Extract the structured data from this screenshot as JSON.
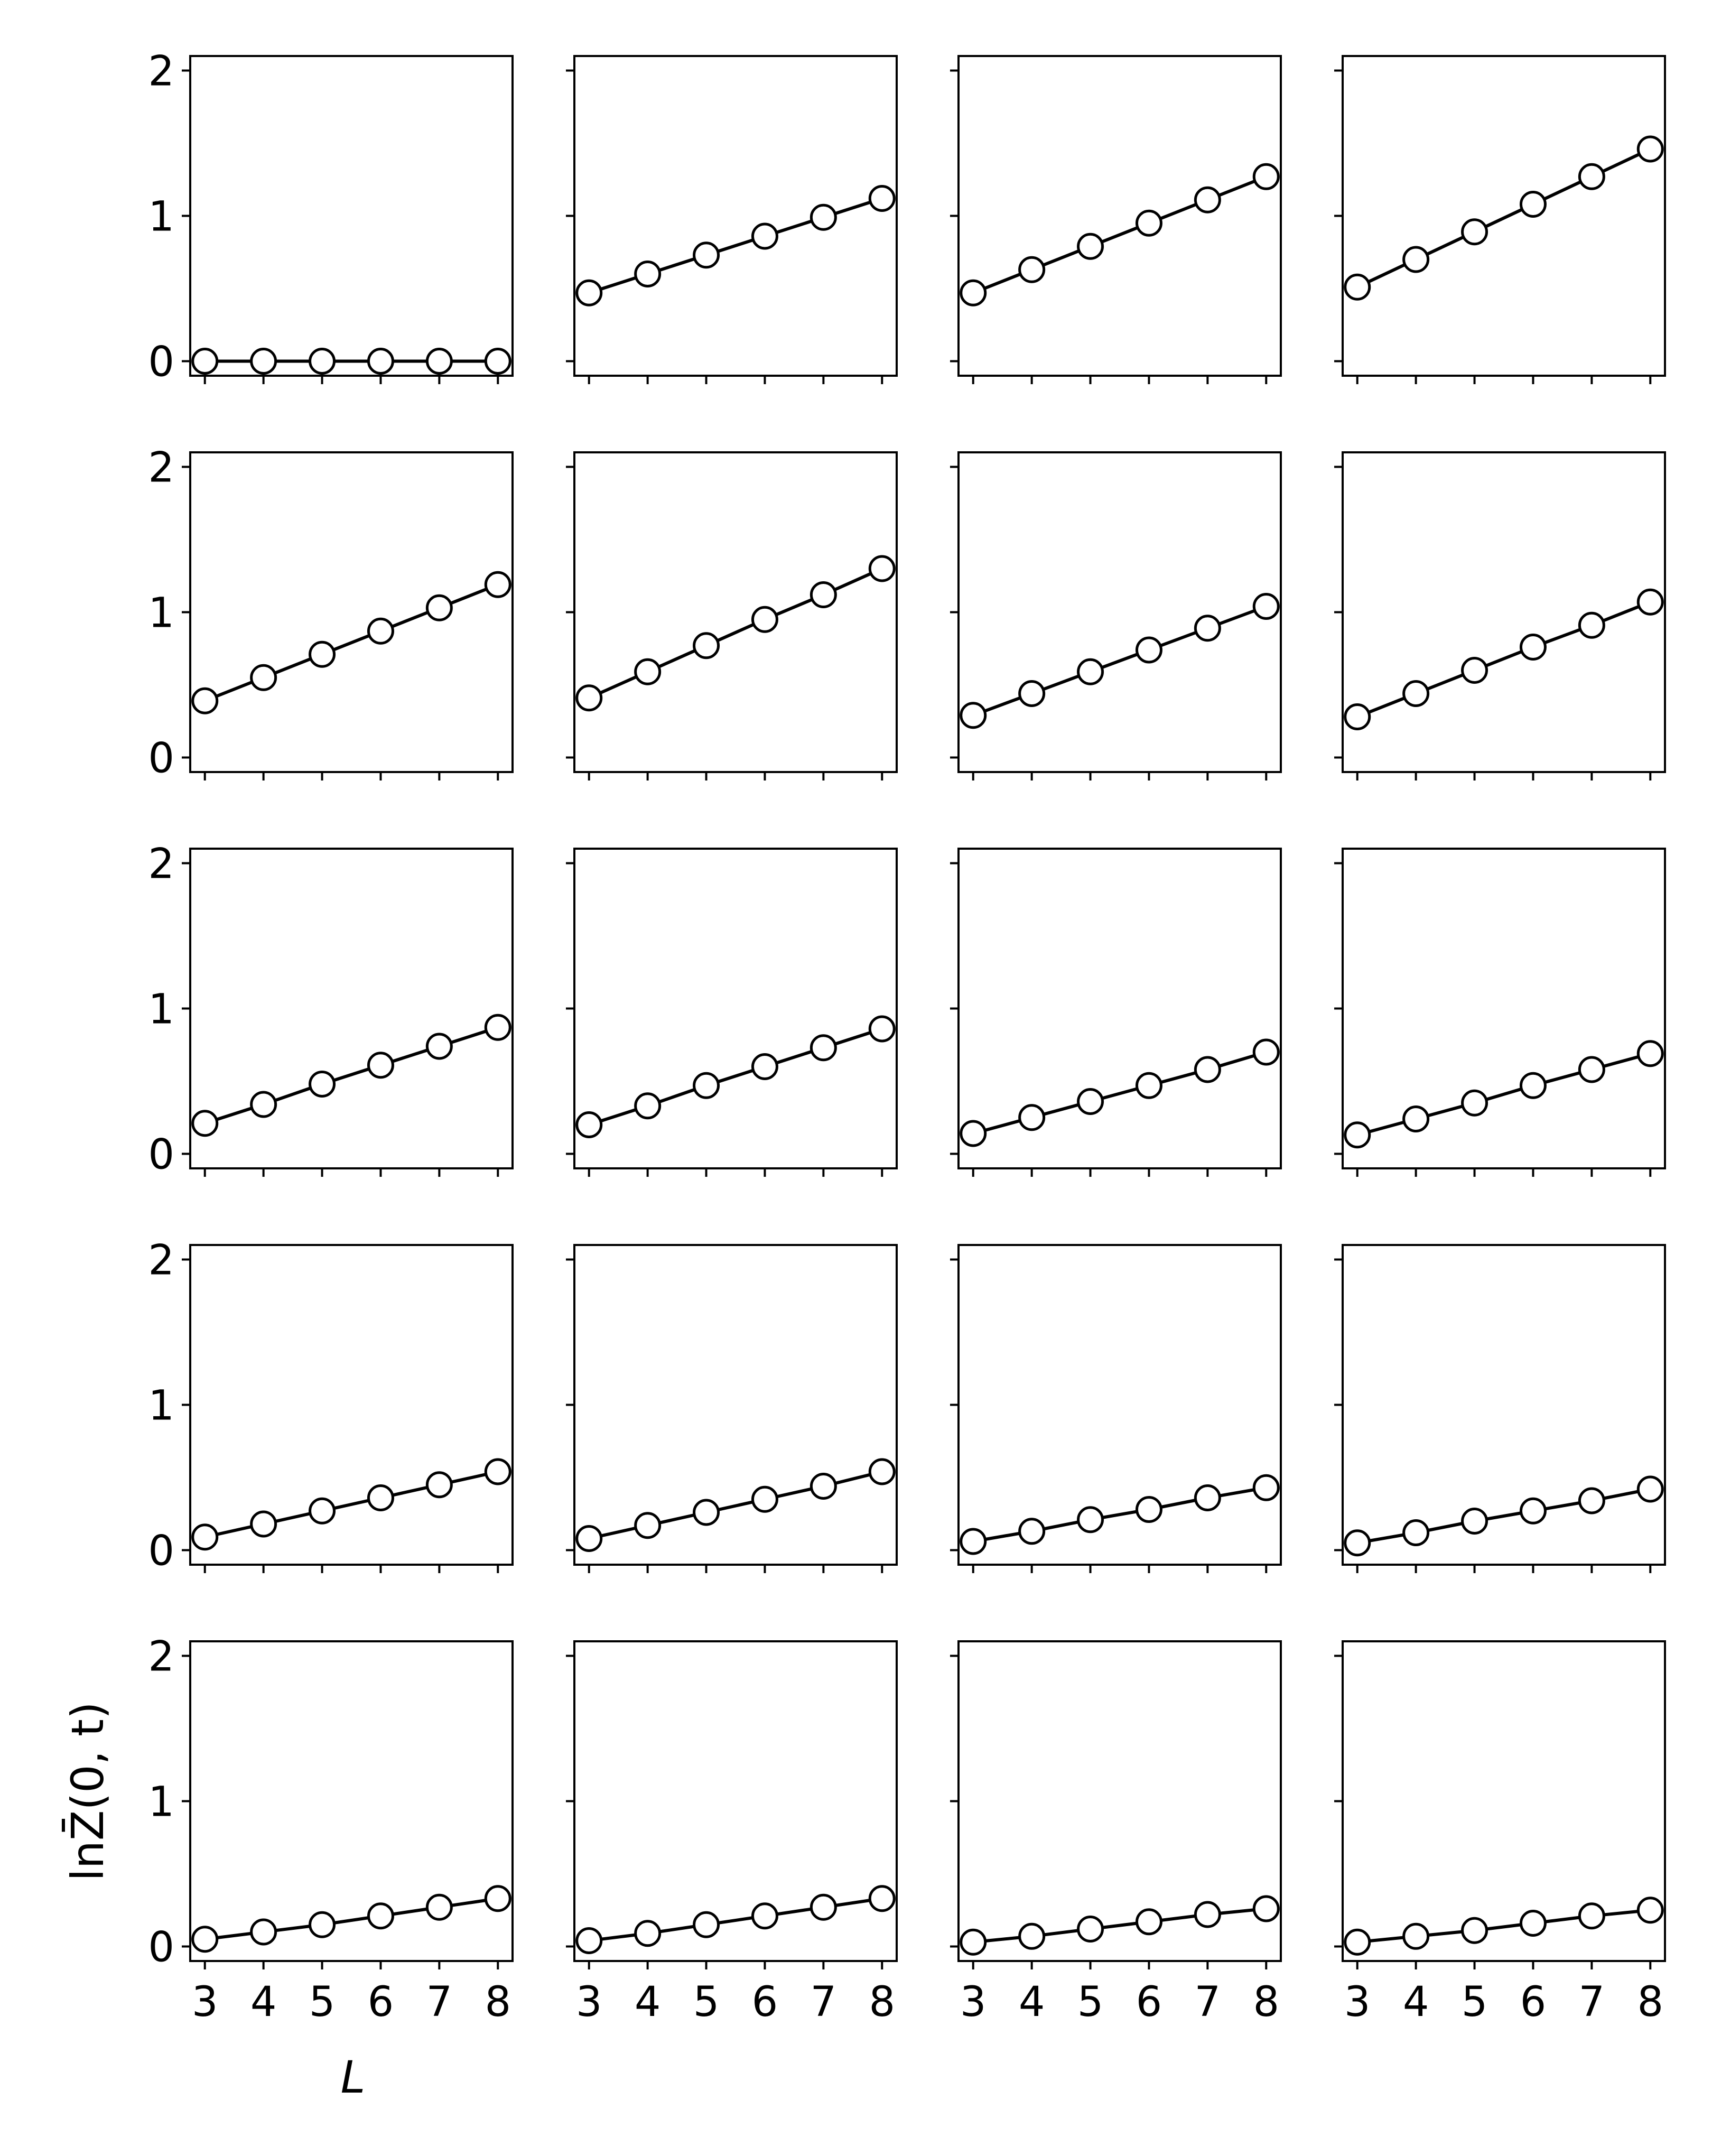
{
  "chart_data": {
    "type": "line",
    "layout": "grid",
    "rows": 5,
    "cols": 4,
    "sharex": true,
    "sharey": true,
    "xlabel": "L",
    "ylabel": "lnZ̄(0, t)",
    "ylim": [
      -0.1,
      2.1
    ],
    "yticks": [
      0,
      1,
      2
    ],
    "xlim": [
      2.75,
      8.25
    ],
    "xticks": [
      3,
      4,
      5,
      6,
      7,
      8
    ],
    "grid": false,
    "line_color": "#000000",
    "marker": "circle-open",
    "marker_fill": "#ffffff",
    "x": [
      3,
      4,
      5,
      6,
      7,
      8
    ],
    "panels": [
      {
        "values": [
          0.0,
          0.0,
          0.0,
          0.0,
          0.0,
          0.0
        ]
      },
      {
        "values": [
          0.47,
          0.6,
          0.73,
          0.86,
          0.99,
          1.12
        ]
      },
      {
        "values": [
          0.47,
          0.63,
          0.79,
          0.95,
          1.11,
          1.27
        ]
      },
      {
        "values": [
          0.51,
          0.7,
          0.89,
          1.08,
          1.27,
          1.46
        ]
      },
      {
        "values": [
          0.39,
          0.55,
          0.71,
          0.87,
          1.03,
          1.19
        ]
      },
      {
        "values": [
          0.41,
          0.59,
          0.77,
          0.95,
          1.12,
          1.3
        ]
      },
      {
        "values": [
          0.29,
          0.44,
          0.59,
          0.74,
          0.89,
          1.04
        ]
      },
      {
        "values": [
          0.28,
          0.44,
          0.6,
          0.76,
          0.91,
          1.07
        ]
      },
      {
        "values": [
          0.21,
          0.34,
          0.48,
          0.61,
          0.74,
          0.87
        ]
      },
      {
        "values": [
          0.2,
          0.33,
          0.47,
          0.6,
          0.73,
          0.86
        ]
      },
      {
        "values": [
          0.14,
          0.25,
          0.36,
          0.47,
          0.58,
          0.7
        ]
      },
      {
        "values": [
          0.13,
          0.24,
          0.35,
          0.47,
          0.58,
          0.69
        ]
      },
      {
        "values": [
          0.09,
          0.18,
          0.27,
          0.36,
          0.45,
          0.54
        ]
      },
      {
        "values": [
          0.08,
          0.17,
          0.26,
          0.35,
          0.44,
          0.54
        ]
      },
      {
        "values": [
          0.06,
          0.13,
          0.21,
          0.28,
          0.36,
          0.43
        ]
      },
      {
        "values": [
          0.05,
          0.12,
          0.2,
          0.27,
          0.34,
          0.42
        ]
      },
      {
        "values": [
          0.05,
          0.1,
          0.15,
          0.21,
          0.27,
          0.33
        ]
      },
      {
        "values": [
          0.04,
          0.09,
          0.15,
          0.21,
          0.27,
          0.33
        ]
      },
      {
        "values": [
          0.03,
          0.07,
          0.12,
          0.17,
          0.22,
          0.26
        ]
      },
      {
        "values": [
          0.03,
          0.07,
          0.11,
          0.16,
          0.21,
          0.25
        ]
      }
    ]
  }
}
